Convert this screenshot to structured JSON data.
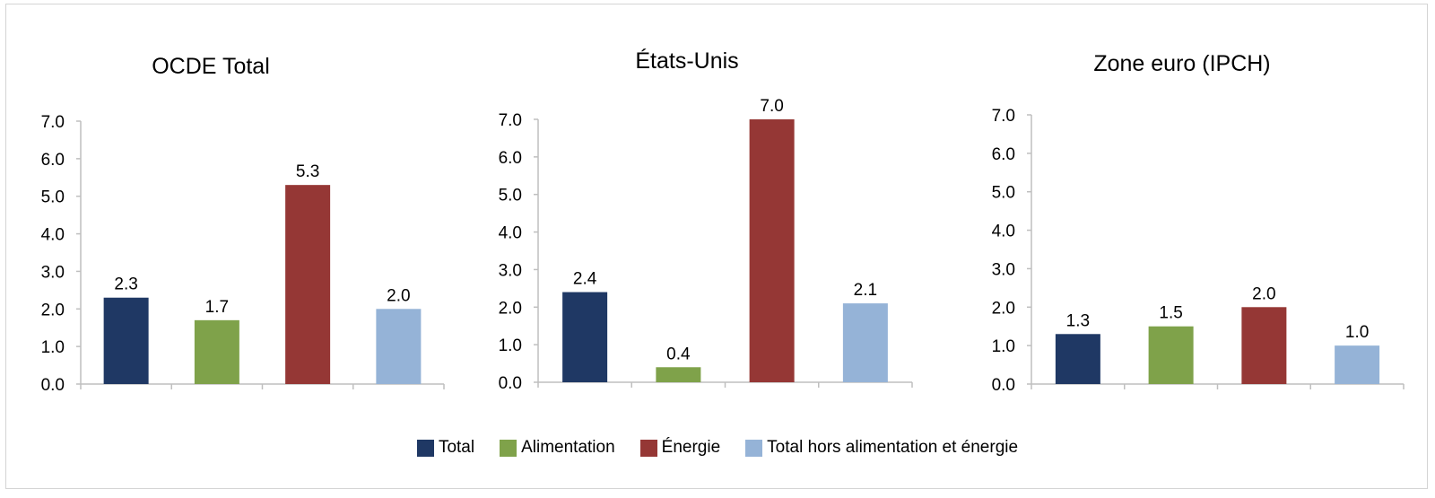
{
  "chart_data": [
    {
      "type": "bar",
      "title": "OCDE Total",
      "categories": [
        "Total",
        "Alimentation",
        "Énergie",
        "Total hors alimentation et énergie"
      ],
      "values": [
        2.3,
        1.7,
        5.3,
        2.0
      ],
      "labels": [
        "2.3",
        "1.7",
        "5.3",
        "2.0"
      ],
      "ylim": [
        0,
        7
      ],
      "yticks": [
        "0.0",
        "1.0",
        "2.0",
        "3.0",
        "4.0",
        "5.0",
        "6.0",
        "7.0"
      ],
      "grid": false
    },
    {
      "type": "bar",
      "title": "États-Unis",
      "categories": [
        "Total",
        "Alimentation",
        "Énergie",
        "Total hors alimentation et énergie"
      ],
      "values": [
        2.4,
        0.4,
        7.0,
        2.1
      ],
      "labels": [
        "2.4",
        "0.4",
        "7.0",
        "2.1"
      ],
      "ylim": [
        0,
        7
      ],
      "yticks": [
        "0.0",
        "1.0",
        "2.0",
        "3.0",
        "4.0",
        "5.0",
        "6.0",
        "7.0"
      ],
      "grid": false
    },
    {
      "type": "bar",
      "title": "Zone euro (IPCH)",
      "categories": [
        "Total",
        "Alimentation",
        "Énergie",
        "Total hors alimentation et énergie"
      ],
      "values": [
        1.3,
        1.5,
        2.0,
        1.0
      ],
      "labels": [
        "1.3",
        "1.5",
        "2.0",
        "1.0"
      ],
      "ylim": [
        0,
        7
      ],
      "yticks": [
        "0.0",
        "1.0",
        "2.0",
        "3.0",
        "4.0",
        "5.0",
        "6.0",
        "7.0"
      ],
      "grid": false
    }
  ],
  "legend": {
    "position": "bottom",
    "items": [
      {
        "label": "Total",
        "color": "#1f3864"
      },
      {
        "label": "Alimentation",
        "color": "#7fa24a"
      },
      {
        "label": "Énergie",
        "color": "#953735"
      },
      {
        "label": "Total hors alimentation et énergie",
        "color": "#95b3d7"
      }
    ]
  }
}
